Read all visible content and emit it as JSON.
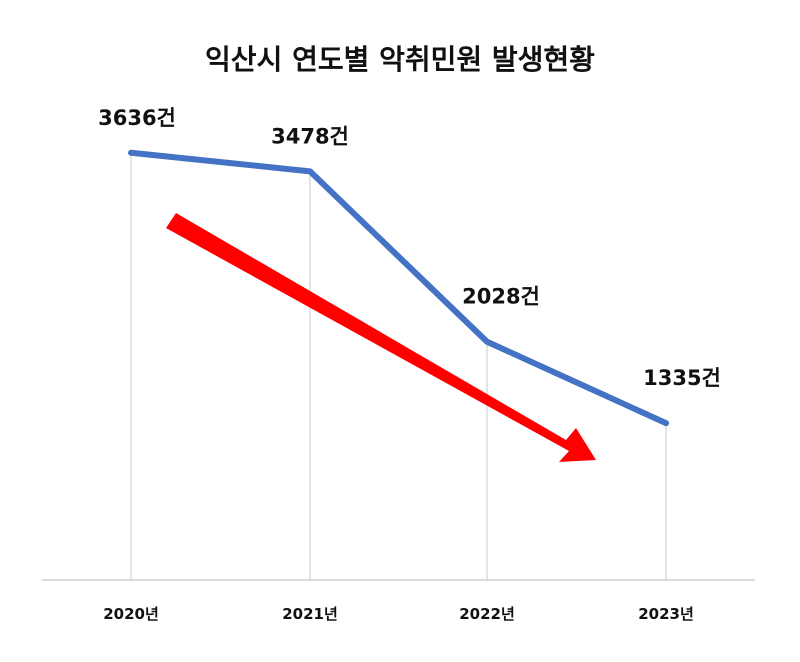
{
  "chart_data": {
    "type": "line",
    "title": "익산시 연도별 악취민원 발생현황",
    "xlabel": "",
    "ylabel": "",
    "categories": [
      "2020년",
      "2021년",
      "2022년",
      "2023년"
    ],
    "series": [
      {
        "values": [
          3636,
          3478,
          2028,
          1335
        ],
        "data_labels": [
          "3636건",
          "3478건",
          "2028건",
          "1335건"
        ]
      }
    ],
    "ylim": [
      0,
      4000
    ],
    "grid": "vertical",
    "legend": "none",
    "annotation": "red-downward-trend-arrow",
    "colors": {
      "line": "#4472C4",
      "arrow": "#FF0000",
      "gridline": "#C8C8C8",
      "axis": "#D0D0D0",
      "text": "#111111"
    }
  }
}
